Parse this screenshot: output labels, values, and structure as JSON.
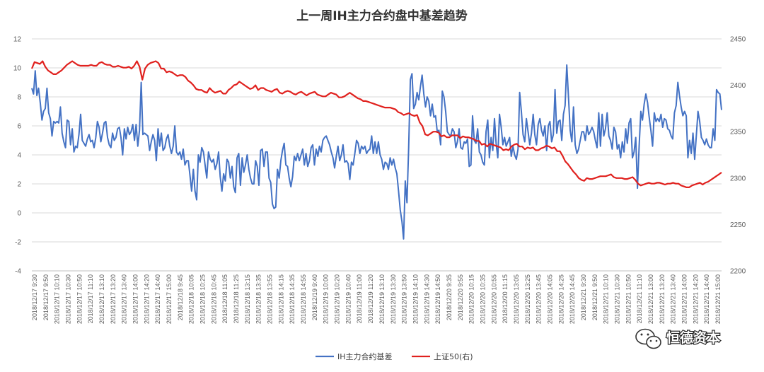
{
  "chart_data": {
    "type": "line",
    "title": "上一周IH主力合约盘中基差趋势",
    "y_left": {
      "ticks": [
        "12",
        "10",
        "8",
        "6",
        "4",
        "2",
        "0",
        "-2",
        "-4"
      ],
      "range": [
        -4,
        12
      ]
    },
    "y_right": {
      "ticks": [
        "2450",
        "2400",
        "2350",
        "2300",
        "2250",
        "2200"
      ],
      "range": [
        2200,
        2450
      ]
    },
    "x_labels": [
      "2018/12/17 9:30",
      "2018/12/17 9:50",
      "2018/12/17 10:10",
      "2018/12/17 10:30",
      "2018/12/17 10:50",
      "2018/12/17 11:10",
      "2018/12/17 13:10",
      "2018/12/17 13:20",
      "2018/12/17 13:40",
      "2018/12/17 14:00",
      "2018/12/17 14:20",
      "2018/12/17 14:40",
      "2018/12/17 15:00",
      "2018/12/18 9:45",
      "2018/12/18 10:05",
      "2018/12/18 10:25",
      "2018/12/18 10:45",
      "2018/12/18 11:05",
      "2018/12/18 11:25",
      "2018/12/18 13:15",
      "2018/12/18 13:35",
      "2018/12/18 13:55",
      "2018/12/18 14:15",
      "2018/12/18 14:35",
      "2018/12/18 14:55",
      "2018/12/19 9:40",
      "2018/12/19 10:00",
      "2018/12/19 10:20",
      "2018/12/19 10:40",
      "2018/12/19 11:00",
      "2018/12/19 11:20",
      "2018/12/19 13:10",
      "2018/12/19 13:30",
      "2018/12/19 13:50",
      "2018/12/19 14:10",
      "2018/12/19 14:30",
      "2018/12/19 14:50",
      "2018/12/20 9:35",
      "2018/12/20 9:55",
      "2018/12/20 10:15",
      "2018/12/20 10:35",
      "2018/12/20 10:55",
      "2018/12/20 11:15",
      "2018/12/20 13:05",
      "2018/12/20 13:25",
      "2018/12/20 13:45",
      "2018/12/20 14:05",
      "2018/12/20 14:25",
      "2018/12/20 14:45",
      "2018/12/21 9:30",
      "2018/12/21 9:50",
      "2018/12/21 10:10",
      "2018/12/21 10:30",
      "2018/12/21 10:50",
      "2018/12/21 11:10",
      "2018/12/21 13:00",
      "2018/12/21 13:20",
      "2018/12/21 13:40",
      "2018/12/21 14:00",
      "2018/12/21 14:20",
      "2018/12/21 14:40",
      "2018/12/21 15:00"
    ],
    "series": [
      {
        "name": "IH主力合约基差",
        "axis": "left",
        "color": "#4472c4",
        "values": [
          8.6,
          8.2,
          9.8,
          8.1,
          8.6,
          7.6,
          6.4,
          7.0,
          7.2,
          8.6,
          6.9,
          6.5,
          5.3,
          6.3,
          6.2,
          6.3,
          6.2,
          7.3,
          5.5,
          4.9,
          4.5,
          6.4,
          6.3,
          4.7,
          5.8,
          4.2,
          4.6,
          4.5,
          5.4,
          6.8,
          5.0,
          4.8,
          4.6,
          5.1,
          5.4,
          4.9,
          5.0,
          4.5,
          5.2,
          6.3,
          5.9,
          4.9,
          5.5,
          6.2,
          6.3,
          5.2,
          4.7,
          4.5,
          5.5,
          5.0,
          5.2,
          5.8,
          5.9,
          5.2,
          4.0,
          5.8,
          5.1,
          5.9,
          5.4,
          5.6,
          6.1,
          5.0,
          6.1,
          4.6,
          5.7,
          9.0,
          5.4,
          5.5,
          5.4,
          5.3,
          4.3,
          4.9,
          5.4,
          5.0,
          3.6,
          5.8,
          4.6,
          5.5,
          4.3,
          4.5,
          5.1,
          5.4,
          4.6,
          4.1,
          4.6,
          6.0,
          4.2,
          4.0,
          4.2,
          3.7,
          4.4,
          3.3,
          3.6,
          3.6,
          2.6,
          1.5,
          3.0,
          1.5,
          0.9,
          4.0,
          3.5,
          4.5,
          4.2,
          3.3,
          2.4,
          4.2,
          3.7,
          3.5,
          3.7,
          3.0,
          3.4,
          4.2,
          2.5,
          1.5,
          2.7,
          2.2,
          3.7,
          3.5,
          2.4,
          3.2,
          1.8,
          1.4,
          3.8,
          4.1,
          1.9,
          3.8,
          2.8,
          3.3,
          4.0,
          3.0,
          2.4,
          2.0,
          2.0,
          3.6,
          3.2,
          1.9,
          4.3,
          4.4,
          3.2,
          4.2,
          4.2,
          2.4,
          2.1,
          0.6,
          0.3,
          0.4,
          3.0,
          2.4,
          3.6,
          4.3,
          4.8,
          3.3,
          3.2,
          2.4,
          1.8,
          2.5,
          3.9,
          3.6,
          4.1,
          3.6,
          4.0,
          4.4,
          3.3,
          4.1,
          3.2,
          3.6,
          4.5,
          4.7,
          3.3,
          4.4,
          3.9,
          4.6,
          4.2,
          5.0,
          5.2,
          5.3,
          5.0,
          4.7,
          4.2,
          3.8,
          3.1,
          3.9,
          4.6,
          3.6,
          4.0,
          4.7,
          3.5,
          3.6,
          3.4,
          2.3,
          3.5,
          3.3,
          4.1,
          5.0,
          4.8,
          4.1,
          4.6,
          4.4,
          4.6,
          4.1,
          4.3,
          4.4,
          5.3,
          4.1,
          4.9,
          4.1,
          4.9,
          4.0,
          3.7,
          3.0,
          3.5,
          3.4,
          3.0,
          3.8,
          3.3,
          3.7,
          3.1,
          2.7,
          1.5,
          0.2,
          -0.6,
          -1.8,
          2.2,
          0.7,
          4.5,
          9.2,
          9.6,
          7.2,
          7.5,
          8.3,
          7.8,
          8.7,
          9.5,
          8.2,
          7.3,
          8.0,
          7.7,
          6.7,
          7.5,
          6.6,
          6.7,
          5.6,
          5.7,
          4.7,
          8.4,
          8.0,
          7.0,
          5.6,
          5.4,
          5.3,
          5.8,
          5.6,
          4.5,
          4.9,
          5.8,
          4.5,
          4.4,
          4.9,
          4.8,
          5.1,
          3.2,
          3.3,
          6.7,
          5.0,
          4.8,
          5.8,
          4.2,
          4.0,
          3.5,
          3.3,
          5.6,
          6.4,
          3.8,
          5.2,
          4.3,
          6.5,
          4.8,
          3.8,
          6.8,
          5.9,
          4.7,
          5.2,
          4.6,
          4.9,
          5.2,
          3.9,
          4.6,
          4.0,
          3.7,
          4.4,
          8.3,
          7.0,
          5.4,
          4.9,
          6.5,
          5.6,
          4.7,
          5.5,
          6.8,
          5.4,
          4.7,
          6.1,
          6.5,
          5.7,
          5.3,
          6.0,
          4.3,
          6.0,
          6.3,
          4.9,
          5.4,
          8.5,
          5.5,
          6.3,
          6.4,
          5.0,
          6.8,
          7.4,
          10.2,
          8.0,
          5.7,
          4.9,
          7.3,
          4.7,
          4.1,
          4.4,
          5.0,
          5.6,
          5.6,
          5.0,
          6.0,
          5.4,
          5.6,
          5.9,
          5.6,
          5.0,
          4.5,
          6.9,
          4.6,
          6.8,
          5.3,
          5.8,
          6.9,
          5.3,
          5.0,
          4.4,
          5.9,
          5.6,
          4.4,
          4.7,
          3.8,
          4.9,
          4.2,
          5.8,
          4.8,
          6.2,
          6.5,
          3.8,
          4.2,
          5.2,
          1.7,
          4.6,
          7.0,
          6.4,
          7.5,
          8.2,
          7.6,
          6.6,
          5.7,
          4.6,
          6.9,
          6.3,
          6.5,
          6.3,
          6.8,
          5.9,
          6.5,
          6.4,
          5.8,
          5.7,
          5.3,
          5.1,
          6.9,
          7.4,
          9.0,
          8.1,
          7.3,
          6.7,
          7.0,
          6.7,
          3.8,
          5.0,
          4.1,
          5.5,
          3.7,
          5.3,
          7.0,
          6.3,
          5.2,
          5.0,
          4.7,
          5.1,
          4.7,
          4.5,
          4.5,
          5.8,
          5.0,
          8.5,
          8.3,
          8.2,
          7.1
        ]
      },
      {
        "name": "上证50(右)",
        "axis": "right",
        "color": "#e0211e",
        "values": [
          2418,
          2425,
          2424,
          2423,
          2426,
          2420,
          2416,
          2414,
          2412,
          2412,
          2414,
          2416,
          2419,
          2422,
          2424,
          2426,
          2424,
          2422,
          2421,
          2421,
          2421,
          2421,
          2422,
          2421,
          2421,
          2424,
          2425,
          2423,
          2422,
          2422,
          2420,
          2420,
          2421,
          2420,
          2419,
          2419,
          2420,
          2418,
          2421,
          2426,
          2420,
          2406,
          2418,
          2422,
          2424,
          2425,
          2426,
          2424,
          2418,
          2418,
          2414,
          2415,
          2414,
          2412,
          2410,
          2411,
          2411,
          2409,
          2405,
          2403,
          2400,
          2396,
          2395,
          2395,
          2393,
          2392,
          2397,
          2394,
          2392,
          2393,
          2394,
          2391,
          2391,
          2395,
          2397,
          2400,
          2401,
          2404,
          2402,
          2400,
          2398,
          2396,
          2397,
          2400,
          2395,
          2397,
          2397,
          2395,
          2394,
          2393,
          2395,
          2396,
          2392,
          2391,
          2393,
          2394,
          2393,
          2391,
          2390,
          2392,
          2393,
          2391,
          2389,
          2391,
          2392,
          2393,
          2390,
          2389,
          2388,
          2388,
          2390,
          2392,
          2391,
          2390,
          2387,
          2387,
          2388,
          2390,
          2392,
          2390,
          2388,
          2386,
          2385,
          2383,
          2383,
          2382,
          2381,
          2380,
          2379,
          2378,
          2377,
          2376,
          2376,
          2376,
          2375,
          2374,
          2371,
          2370,
          2368,
          2369,
          2370,
          2368,
          2367,
          2368,
          2360,
          2356,
          2347,
          2346,
          2348,
          2350,
          2350,
          2349,
          2345,
          2346,
          2344,
          2344,
          2346,
          2346,
          2346,
          2343,
          2345,
          2344,
          2344,
          2343,
          2342,
          2340,
          2340,
          2336,
          2337,
          2334,
          2337,
          2336,
          2335,
          2334,
          2333,
          2330,
          2331,
          2330,
          2334,
          2336,
          2337,
          2334,
          2334,
          2331,
          2333,
          2332,
          2333,
          2330,
          2330,
          2332,
          2333,
          2335,
          2334,
          2332,
          2333,
          2329,
          2329,
          2324,
          2318,
          2315,
          2311,
          2307,
          2304,
          2300,
          2298,
          2297,
          2300,
          2299,
          2299,
          2300,
          2301,
          2302,
          2302,
          2302,
          2303,
          2304,
          2301,
          2300,
          2300,
          2300,
          2299,
          2299,
          2300,
          2301,
          2298,
          2294,
          2292,
          2293,
          2294,
          2295,
          2294,
          2294,
          2295,
          2295,
          2294,
          2293,
          2294,
          2294,
          2295,
          2294,
          2294,
          2292,
          2291,
          2290,
          2290,
          2292,
          2293,
          2294,
          2295,
          2293,
          2295,
          2296,
          2298,
          2300,
          2302,
          2304,
          2306
        ]
      }
    ],
    "legend": {
      "position": "bottom",
      "entries": [
        "IH主力合约基差",
        "上证50(右)"
      ]
    }
  },
  "watermark": {
    "text": "恒德资本",
    "icon": "wechat-icon"
  }
}
